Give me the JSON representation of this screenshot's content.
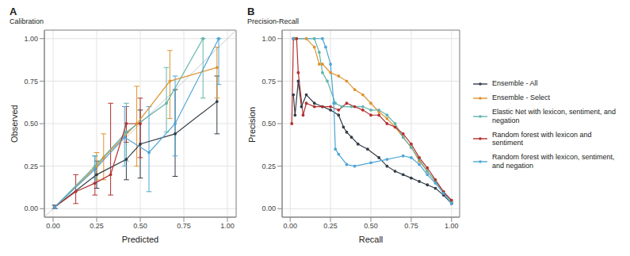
{
  "chart_data": [
    {
      "type": "line",
      "panel_label": "A",
      "title": "Calibration",
      "x_label": "Predicted",
      "y_label": "Observed",
      "xlim": [
        -0.05,
        1.05
      ],
      "ylim": [
        -0.05,
        1.05
      ],
      "xticks": [
        {
          "value": 0,
          "label": "0.00"
        },
        {
          "value": 0.25,
          "label": "0.25"
        },
        {
          "value": 0.5,
          "label": "0.50"
        },
        {
          "value": 0.75,
          "label": "0.75"
        },
        {
          "value": 1,
          "label": "1.00"
        }
      ],
      "yticks": [
        {
          "value": 0,
          "label": "0.00"
        },
        {
          "value": 0.25,
          "label": "0.25"
        },
        {
          "value": 0.5,
          "label": "0.50"
        },
        {
          "value": 0.75,
          "label": "0.75"
        },
        {
          "value": 1,
          "label": "1.00"
        }
      ],
      "grid": true,
      "marker": "point",
      "series": [
        {
          "name": "Ensemble - All",
          "color": "#333d47",
          "x": [
            0.01,
            0.25,
            0.42,
            0.5,
            0.7,
            0.94
          ],
          "values": [
            0.01,
            0.2,
            0.29,
            0.38,
            0.44,
            0.63
          ],
          "error_low": [
            0,
            0.12,
            0.17,
            0.18,
            0.19,
            0.44
          ],
          "error_high": [
            0.02,
            0.28,
            0.45,
            0.58,
            0.7,
            0.78
          ]
        },
        {
          "name": "Ensemble - Select",
          "color": "#e0922f",
          "x": [
            0.01,
            0.25,
            0.29,
            0.48,
            0.67,
            0.94
          ],
          "values": [
            0.01,
            0.25,
            0.3,
            0.5,
            0.75,
            0.83
          ],
          "error_low": [
            0,
            0.17,
            0.17,
            0.25,
            0.53,
            0.65
          ],
          "error_high": [
            0.02,
            0.33,
            0.44,
            0.72,
            0.93,
            0.95
          ]
        },
        {
          "name": "Elastic Net with lexicon, sentiment, and negation",
          "color": "#62b5aa",
          "x": [
            0.01,
            0.24,
            0.42,
            0.65,
            0.86
          ],
          "values": [
            0.01,
            0.25,
            0.45,
            0.62,
            1
          ],
          "error_low": [
            0,
            0.18,
            0.28,
            0.45,
            0.65
          ],
          "error_high": [
            0.02,
            0.31,
            0.62,
            0.83,
            1
          ]
        },
        {
          "name": "Random forest with lexicon and sentiment",
          "color": "#b2302f",
          "x": [
            0.01,
            0.13,
            0.24,
            0.33,
            0.42,
            0.5
          ],
          "values": [
            0.01,
            0.1,
            0.15,
            0.2,
            0.5,
            0.5
          ],
          "error_low": [
            0,
            0.03,
            0.08,
            0.08,
            0.39,
            0.3
          ],
          "error_high": [
            0.02,
            0.2,
            0.24,
            0.62,
            0.6,
            0.65
          ]
        },
        {
          "name": "Random forest with lexicon, sentiment, and negation",
          "color": "#4ea6d6",
          "x": [
            0.01,
            0.24,
            0.41,
            0.55,
            0.7,
            0.95
          ],
          "values": [
            0.01,
            0.23,
            0.42,
            0.33,
            0.5,
            1
          ],
          "error_low": [
            0,
            0.15,
            0.25,
            0.1,
            0.31,
            0.73
          ],
          "error_high": [
            0.02,
            0.31,
            0.6,
            0.6,
            0.78,
            1
          ]
        }
      ]
    },
    {
      "type": "line",
      "panel_label": "B",
      "title": "Precision-Recall",
      "x_label": "Recall",
      "y_label": "Precision",
      "xlim": [
        -0.05,
        1.05
      ],
      "ylim": [
        -0.05,
        1.05
      ],
      "xticks": [
        {
          "value": 0,
          "label": "0.00"
        },
        {
          "value": 0.25,
          "label": "0.25"
        },
        {
          "value": 0.5,
          "label": "0.50"
        },
        {
          "value": 0.75,
          "label": "0.75"
        },
        {
          "value": 1,
          "label": "1.00"
        }
      ],
      "yticks": [
        {
          "value": 0,
          "label": "0.00"
        },
        {
          "value": 0.25,
          "label": "0.25"
        },
        {
          "value": 0.5,
          "label": "0.50"
        },
        {
          "value": 0.75,
          "label": "0.75"
        },
        {
          "value": 1,
          "label": "1.00"
        }
      ],
      "grid": true,
      "legend": "right",
      "marker": "point",
      "series": [
        {
          "name": "Ensemble - All",
          "color": "#333d47",
          "x": [
            0.02,
            0.03,
            0.05,
            0.07,
            0.1,
            0.15,
            0.2,
            0.25,
            0.3,
            0.33,
            0.35,
            0.38,
            0.42,
            0.48,
            0.55,
            0.6,
            0.65,
            0.7,
            0.75,
            0.8,
            0.85,
            0.9,
            0.95,
            1
          ],
          "values": [
            0.67,
            0.55,
            0.75,
            0.6,
            0.67,
            0.62,
            0.6,
            0.58,
            0.55,
            0.48,
            0.45,
            0.42,
            0.38,
            0.35,
            0.3,
            0.25,
            0.22,
            0.2,
            0.18,
            0.16,
            0.14,
            0.12,
            0.08,
            0.03
          ]
        },
        {
          "name": "Ensemble - Select",
          "color": "#e0922f",
          "x": [
            0.03,
            0.1,
            0.15,
            0.18,
            0.2,
            0.25,
            0.3,
            0.35,
            0.4,
            0.45,
            0.5,
            0.55,
            0.6,
            0.65,
            0.7,
            0.75,
            0.8,
            0.85,
            0.9,
            0.95,
            1
          ],
          "values": [
            1,
            1,
            0.95,
            0.85,
            0.85,
            0.8,
            0.78,
            0.75,
            0.7,
            0.67,
            0.62,
            0.57,
            0.53,
            0.48,
            0.42,
            0.36,
            0.28,
            0.22,
            0.16,
            0.1,
            0.04
          ]
        },
        {
          "name": "Elastic Net with lexicon, sentiment, and negation",
          "color": "#62b5aa",
          "x": [
            0.02,
            0.15,
            0.18,
            0.2,
            0.23,
            0.28,
            0.32,
            0.38,
            0.45,
            0.5,
            0.55,
            0.6,
            0.65,
            0.7,
            0.75,
            0.8,
            0.85,
            0.9,
            0.95,
            1
          ],
          "values": [
            1,
            1,
            0.92,
            0.8,
            0.75,
            0.62,
            0.6,
            0.6,
            0.6,
            0.58,
            0.58,
            0.55,
            0.5,
            0.42,
            0.36,
            0.29,
            0.22,
            0.16,
            0.1,
            0.04
          ]
        },
        {
          "name": "Random forest with lexicon and sentiment",
          "color": "#b2302f",
          "x": [
            0.01,
            0.02,
            0.04,
            0.05,
            0.08,
            0.1,
            0.15,
            0.2,
            0.25,
            0.3,
            0.35,
            0.4,
            0.45,
            0.5,
            0.55,
            0.6,
            0.65,
            0.7,
            0.75,
            0.8,
            0.85,
            0.9,
            0.95,
            1
          ],
          "values": [
            0.5,
            1,
            1,
            0.8,
            0.55,
            0.62,
            0.6,
            0.6,
            0.6,
            0.58,
            0.62,
            0.6,
            0.58,
            0.55,
            0.55,
            0.5,
            0.48,
            0.44,
            0.38,
            0.3,
            0.24,
            0.17,
            0.1,
            0.05
          ]
        },
        {
          "name": "Random forest with lexicon, sentiment, and negation",
          "color": "#4ea6d6",
          "x": [
            0.02,
            0.2,
            0.22,
            0.25,
            0.27,
            0.28,
            0.3,
            0.35,
            0.4,
            0.5,
            0.6,
            0.7,
            0.75,
            0.8,
            0.85,
            0.9,
            0.95,
            1
          ],
          "values": [
            1,
            1,
            0.95,
            0.85,
            0.62,
            0.35,
            0.32,
            0.26,
            0.25,
            0.27,
            0.29,
            0.31,
            0.3,
            0.26,
            0.2,
            0.15,
            0.09,
            0.03
          ]
        }
      ]
    }
  ]
}
